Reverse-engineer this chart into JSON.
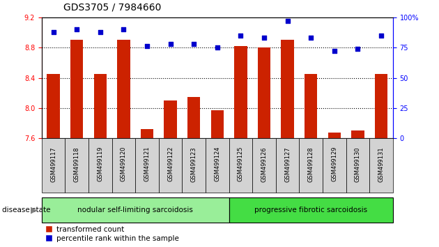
{
  "title": "GDS3705 / 7984660",
  "categories": [
    "GSM499117",
    "GSM499118",
    "GSM499119",
    "GSM499120",
    "GSM499121",
    "GSM499122",
    "GSM499123",
    "GSM499124",
    "GSM499125",
    "GSM499126",
    "GSM499127",
    "GSM499128",
    "GSM499129",
    "GSM499130",
    "GSM499131"
  ],
  "bar_values": [
    8.45,
    8.9,
    8.45,
    8.9,
    7.72,
    8.1,
    8.15,
    7.97,
    8.82,
    8.8,
    8.9,
    8.45,
    7.68,
    7.7,
    8.45
  ],
  "blue_values": [
    88,
    90,
    88,
    90,
    76,
    78,
    78,
    75,
    85,
    83,
    97,
    83,
    72,
    74,
    85
  ],
  "ylim_left": [
    7.6,
    9.2
  ],
  "ylim_right": [
    0,
    100
  ],
  "yticks_left": [
    7.6,
    8.0,
    8.4,
    8.8,
    9.2
  ],
  "yticks_right": [
    0,
    25,
    50,
    75,
    100
  ],
  "grid_values": [
    8.0,
    8.4,
    8.8
  ],
  "bar_color": "#cc2200",
  "dot_color": "#0000cc",
  "group1_label": "nodular self-limiting sarcoidosis",
  "group2_label": "progressive fibrotic sarcoidosis",
  "group1_color": "#99ee99",
  "group2_color": "#44dd44",
  "disease_label": "disease state",
  "legend_bar": "transformed count",
  "legend_dot": "percentile rank within the sample",
  "n_group1": 8,
  "n_group2": 7,
  "tick_fontsize": 7,
  "title_fontsize": 10,
  "xlabel_fontsize": 6,
  "bg_gray": "#d3d3d3"
}
